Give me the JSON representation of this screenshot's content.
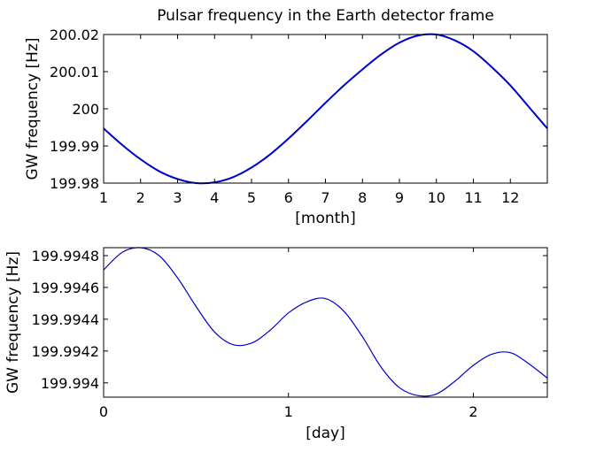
{
  "chart_data": [
    {
      "type": "line",
      "title": "Pulsar frequency in the Earth detector frame",
      "xlabel": "[month]",
      "ylabel": "GW frequency [Hz]",
      "xlim": [
        1,
        13
      ],
      "ylim": [
        199.98,
        200.02
      ],
      "xticks": [
        1,
        2,
        3,
        4,
        5,
        6,
        7,
        8,
        9,
        10,
        11,
        12
      ],
      "xtick_labels": [
        "1",
        "2",
        "3",
        "4",
        "5",
        "6",
        "7",
        "8",
        "9",
        "10",
        "11",
        "12"
      ],
      "yticks": [
        199.98,
        199.99,
        200,
        200.01,
        200.02
      ],
      "ytick_labels": [
        "199.98",
        "199.99",
        "200",
        "200.01",
        "200.02"
      ],
      "line_color": "#0000cc",
      "series": [
        {
          "x": [
            1,
            1.5,
            2,
            2.5,
            3,
            3.5,
            4,
            4.5,
            5,
            5.5,
            6,
            6.5,
            7,
            7.5,
            8,
            8.5,
            9,
            9.5,
            10,
            10.5,
            11,
            11.5,
            12,
            12.5,
            13
          ],
          "y": [
            199.9947,
            199.9903,
            199.9864,
            199.9832,
            199.9811,
            199.98,
            199.9802,
            199.9816,
            199.9842,
            199.9877,
            199.992,
            199.9967,
            200.0016,
            200.0063,
            200.0106,
            200.0146,
            200.0178,
            200.0197,
            200.02,
            200.0184,
            200.0155,
            200.0112,
            200.0063,
            200.0005,
            199.9947
          ]
        }
      ]
    },
    {
      "type": "line",
      "title": "",
      "xlabel": "[day]",
      "ylabel": "GW frequency [Hz]",
      "xlim": [
        0,
        2.4
      ],
      "ylim": [
        199.99391,
        199.99485
      ],
      "xticks": [
        0,
        1,
        2
      ],
      "xtick_labels": [
        "0",
        "1",
        "2"
      ],
      "yticks": [
        199.994,
        199.9942,
        199.9944,
        199.9946,
        199.9948
      ],
      "ytick_labels": [
        "199.994",
        "199.9942",
        "199.9944",
        "199.9946",
        "199.9948"
      ],
      "line_color": "#0000cc",
      "series": [
        {
          "x": [
            0,
            0.1,
            0.2,
            0.3,
            0.4,
            0.5,
            0.6,
            0.7,
            0.8,
            0.9,
            1.0,
            1.1,
            1.2,
            1.3,
            1.4,
            1.5,
            1.6,
            1.7,
            1.8,
            1.9,
            2.0,
            2.1,
            2.2,
            2.3,
            2.4
          ],
          "y": [
            199.99471,
            199.99482,
            199.99485,
            199.9948,
            199.99466,
            199.99448,
            199.99432,
            199.99424,
            199.99425,
            199.99433,
            199.99444,
            199.99451,
            199.99453,
            199.99445,
            199.99429,
            199.9941,
            199.99397,
            199.99392,
            199.99393,
            199.99401,
            199.99411,
            199.99418,
            199.99419,
            199.99412,
            199.99403
          ]
        }
      ]
    }
  ]
}
